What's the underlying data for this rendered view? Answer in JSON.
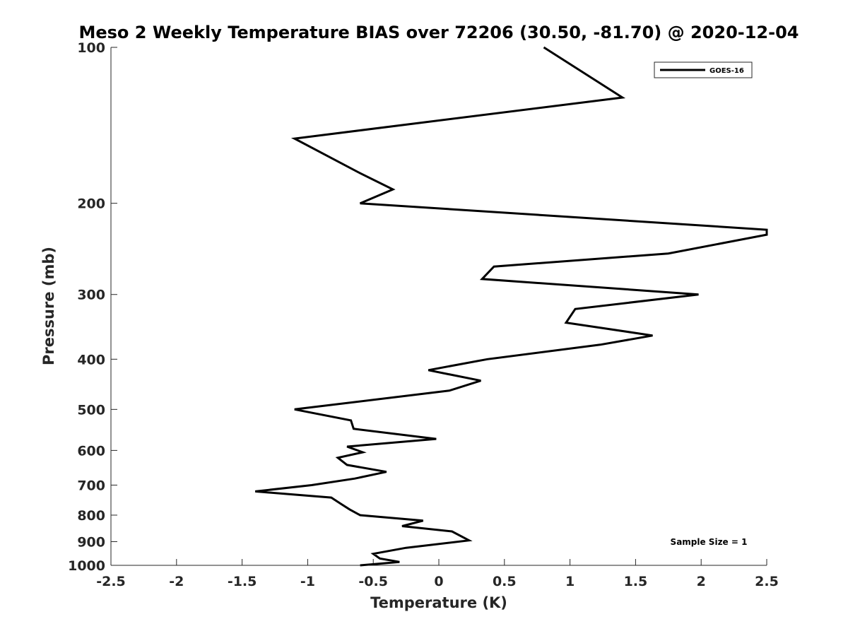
{
  "chart_data": {
    "type": "line",
    "title": "Meso 2 Weekly Temperature BIAS over 72206 (30.50, -81.70) @ 2020-12-04",
    "xlabel": "Temperature (K)",
    "ylabel": "Pressure (mb)",
    "xlim": [
      -2.5,
      2.5
    ],
    "ylim": [
      100,
      1000
    ],
    "y_scale": "log",
    "y_reversed": true,
    "grid": false,
    "legend_position": "top-right",
    "x_ticks": [
      -2.5,
      -2,
      -1.5,
      -1,
      -0.5,
      0,
      0.5,
      1,
      1.5,
      2,
      2.5
    ],
    "x_tick_labels": [
      "-2.5",
      "-2",
      "-1.5",
      "-1",
      "-0.5",
      "0",
      "0.5",
      "1",
      "1.5",
      "2",
      "2.5"
    ],
    "y_ticks": [
      100,
      200,
      300,
      400,
      500,
      600,
      700,
      800,
      900,
      1000
    ],
    "y_tick_labels": [
      "100",
      "200",
      "300",
      "400",
      "500",
      "600",
      "700",
      "800",
      "900",
      "1000"
    ],
    "annotation": "Sample Size = 1",
    "series": [
      {
        "name": "GOES-16",
        "color": "#000000",
        "points": [
          {
            "x": 0.8,
            "y": 100
          },
          {
            "x": 1.4,
            "y": 125
          },
          {
            "x": -1.1,
            "y": 150
          },
          {
            "x": -0.6,
            "y": 175
          },
          {
            "x": -0.35,
            "y": 188
          },
          {
            "x": -0.6,
            "y": 200
          },
          {
            "x": 2.5,
            "y": 225
          },
          {
            "x": 2.5,
            "y": 230
          },
          {
            "x": 1.75,
            "y": 250
          },
          {
            "x": 0.42,
            "y": 265
          },
          {
            "x": 0.33,
            "y": 280
          },
          {
            "x": 1.98,
            "y": 300
          },
          {
            "x": 1.04,
            "y": 320
          },
          {
            "x": 0.97,
            "y": 340
          },
          {
            "x": 1.63,
            "y": 360
          },
          {
            "x": 1.23,
            "y": 375
          },
          {
            "x": 0.37,
            "y": 400
          },
          {
            "x": -0.08,
            "y": 420
          },
          {
            "x": 0.32,
            "y": 440
          },
          {
            "x": 0.08,
            "y": 460
          },
          {
            "x": -1.1,
            "y": 500
          },
          {
            "x": -0.67,
            "y": 525
          },
          {
            "x": -0.65,
            "y": 545
          },
          {
            "x": -0.02,
            "y": 570
          },
          {
            "x": -0.7,
            "y": 590
          },
          {
            "x": -0.58,
            "y": 605
          },
          {
            "x": -0.77,
            "y": 620
          },
          {
            "x": -0.7,
            "y": 640
          },
          {
            "x": -0.4,
            "y": 660
          },
          {
            "x": -0.64,
            "y": 680
          },
          {
            "x": -0.97,
            "y": 700
          },
          {
            "x": -1.4,
            "y": 720
          },
          {
            "x": -0.82,
            "y": 740
          },
          {
            "x": -0.75,
            "y": 760
          },
          {
            "x": -0.68,
            "y": 780
          },
          {
            "x": -0.6,
            "y": 800
          },
          {
            "x": -0.12,
            "y": 820
          },
          {
            "x": -0.28,
            "y": 840
          },
          {
            "x": 0.1,
            "y": 860
          },
          {
            "x": 0.23,
            "y": 895
          },
          {
            "x": -0.25,
            "y": 925
          },
          {
            "x": -0.5,
            "y": 950
          },
          {
            "x": -0.45,
            "y": 970
          },
          {
            "x": -0.3,
            "y": 985
          },
          {
            "x": -0.6,
            "y": 1000
          }
        ]
      }
    ]
  }
}
